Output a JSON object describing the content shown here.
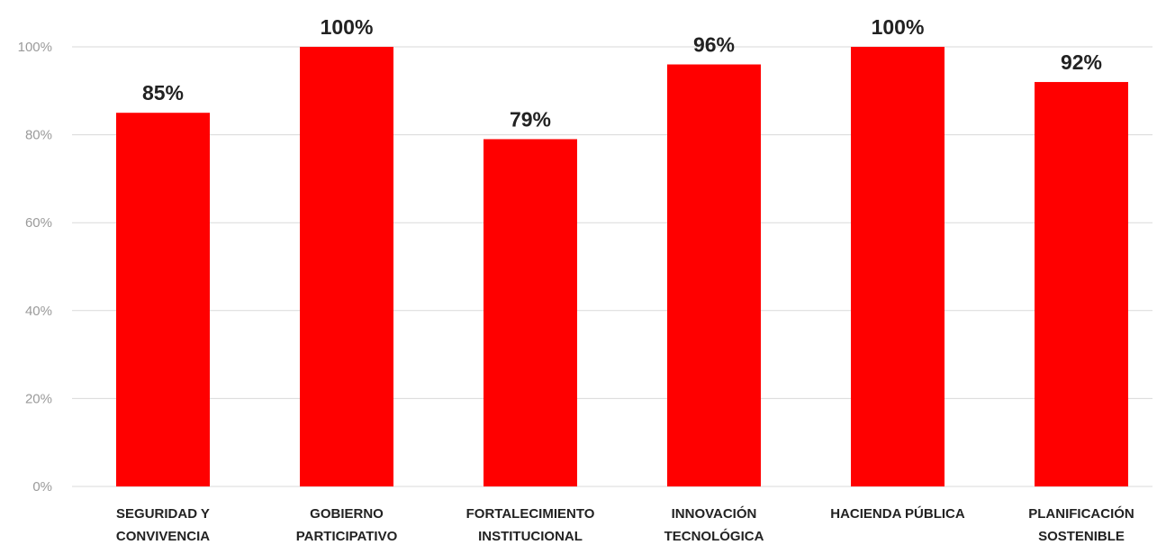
{
  "chart_data": {
    "type": "bar",
    "categories": [
      [
        "SEGURIDAD Y",
        "CONVIVENCIA"
      ],
      [
        "GOBIERNO",
        "PARTICIPATIVO"
      ],
      [
        "FORTALECIMIENTO",
        "INSTITUCIONAL"
      ],
      [
        "INNOVACIÓN",
        "TECNOLÓGICA"
      ],
      [
        "HACIENDA PÚBLICA"
      ],
      [
        "PLANIFICACIÓN",
        "SOSTENIBLE"
      ]
    ],
    "values": [
      85,
      100,
      79,
      96,
      100,
      92
    ],
    "value_labels": [
      "85%",
      "100%",
      "79%",
      "96%",
      "100%",
      "92%"
    ],
    "yticks": [
      0,
      20,
      40,
      60,
      80,
      100
    ],
    "ytick_labels": [
      "0%",
      "20%",
      "40%",
      "60%",
      "80%",
      "100%"
    ],
    "ylim": [
      0,
      100
    ],
    "title": "",
    "xlabel": "",
    "ylabel": "",
    "grid": true,
    "legend": false,
    "bar_color": "#ff0000",
    "grid_color": "#d9d9d9"
  }
}
